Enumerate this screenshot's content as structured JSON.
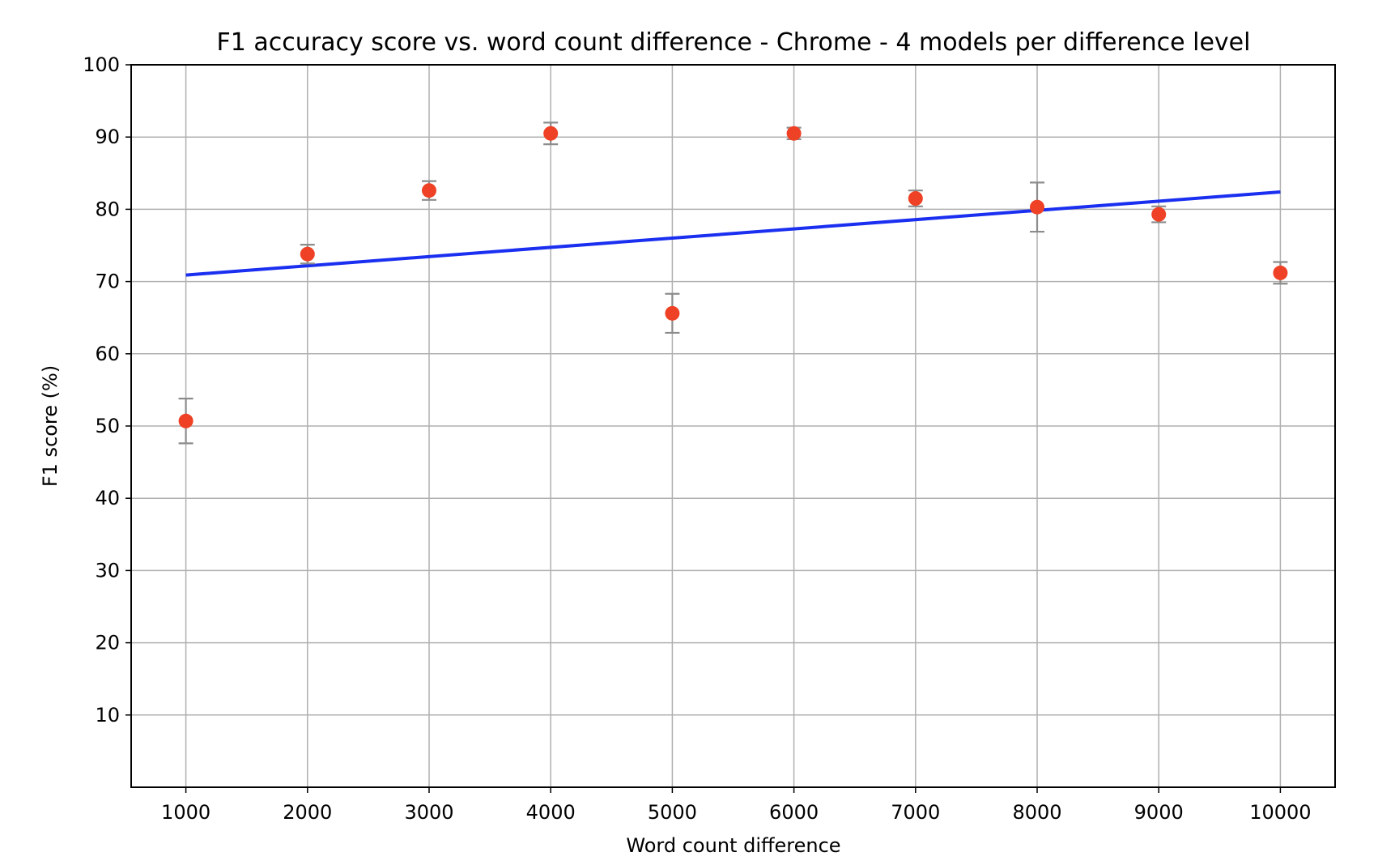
{
  "chart_data": {
    "type": "scatter",
    "title": "F1 accuracy score vs. word count difference - Chrome - 4 models per difference level",
    "xlabel": "Word count difference",
    "ylabel": "F1 score (%)",
    "xlim": [
      550,
      10450
    ],
    "ylim": [
      0,
      100
    ],
    "xticks": [
      1000,
      2000,
      3000,
      4000,
      5000,
      6000,
      7000,
      8000,
      9000,
      10000
    ],
    "yticks": [
      10,
      20,
      30,
      40,
      50,
      60,
      70,
      80,
      90,
      100
    ],
    "grid": true,
    "points": [
      {
        "x": 1000,
        "y": 50.7,
        "err": 3.1
      },
      {
        "x": 2000,
        "y": 73.8,
        "err": 1.3
      },
      {
        "x": 3000,
        "y": 82.6,
        "err": 1.3
      },
      {
        "x": 4000,
        "y": 90.5,
        "err": 1.5
      },
      {
        "x": 5000,
        "y": 65.6,
        "err": 2.7
      },
      {
        "x": 6000,
        "y": 90.5,
        "err": 0.8
      },
      {
        "x": 7000,
        "y": 81.5,
        "err": 1.1
      },
      {
        "x": 8000,
        "y": 80.3,
        "err": 3.4
      },
      {
        "x": 9000,
        "y": 79.3,
        "err": 1.1
      },
      {
        "x": 10000,
        "y": 71.2,
        "err": 1.5
      }
    ],
    "trendline": {
      "x": [
        1000,
        10000
      ],
      "y": [
        70.9,
        82.4
      ]
    },
    "colors": {
      "point": "#ee4125",
      "trendline": "#1a2ff0",
      "errorbar": "#8c8c8c"
    }
  }
}
